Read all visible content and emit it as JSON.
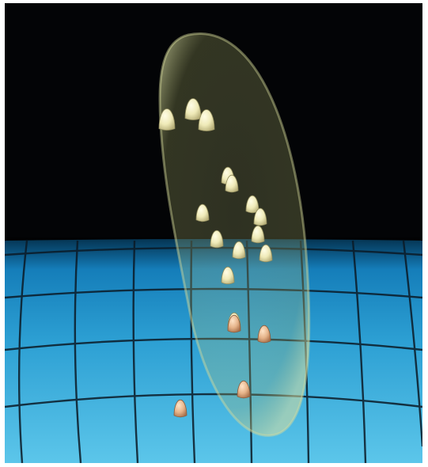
{
  "scene": {
    "colors": {
      "sky": "#030406",
      "floor_top": "#0b6fae",
      "floor_mid": "#2c9fd3",
      "floor_bottom": "#5cc6ea",
      "grid_line": "#0b1a26",
      "ellipsoid_fill": "#b9c27a",
      "ellipsoid_edge": "#d7dc9c",
      "marker_light": "#f0efc0",
      "marker_warm": "#e8b98e"
    },
    "markers": [
      {
        "kind": "light"
      },
      {
        "kind": "light"
      },
      {
        "kind": "light"
      },
      {
        "kind": "light"
      },
      {
        "kind": "light"
      },
      {
        "kind": "light"
      },
      {
        "kind": "light"
      },
      {
        "kind": "light"
      },
      {
        "kind": "light"
      },
      {
        "kind": "light"
      },
      {
        "kind": "light"
      },
      {
        "kind": "light"
      },
      {
        "kind": "light"
      },
      {
        "kind": "light"
      },
      {
        "kind": "warm"
      },
      {
        "kind": "warm"
      },
      {
        "kind": "warm"
      },
      {
        "kind": "warm"
      }
    ]
  }
}
